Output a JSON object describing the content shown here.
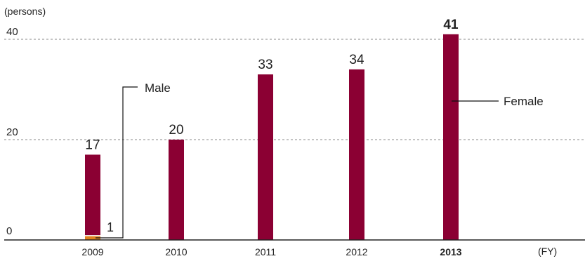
{
  "chart_data": {
    "type": "bar",
    "categories": [
      "2009",
      "2010",
      "2011",
      "2012",
      "2013"
    ],
    "series": [
      {
        "name": "Male",
        "values": [
          1,
          0,
          0,
          0,
          0
        ],
        "color": "#E0821E"
      },
      {
        "name": "Female",
        "values": [
          17,
          20,
          33,
          34,
          41
        ],
        "color": "#8B0033"
      }
    ],
    "stacked": true,
    "bar_labels": [
      "17",
      "20",
      "33",
      "34",
      "41"
    ],
    "male_label": "1",
    "y_unit": "(persons)",
    "x_unit": "(FY)",
    "yticks": [
      "0",
      "20",
      "40"
    ],
    "ylim": [
      0,
      40
    ],
    "grid": "dashed horizontal",
    "annotations": {
      "male": "Male",
      "female": "Female"
    }
  }
}
